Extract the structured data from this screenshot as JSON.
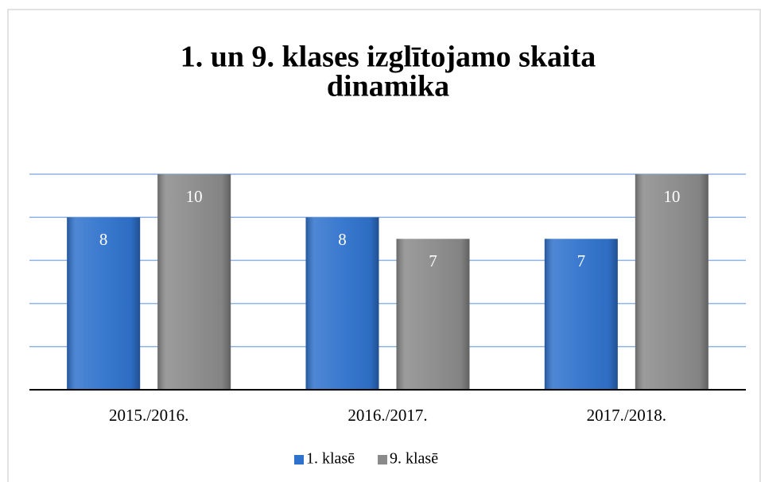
{
  "chart_data": {
    "type": "bar",
    "title": [
      "1. un 9. klases izglītojamo skaita",
      "dinamika"
    ],
    "categories": [
      "2015./2016.",
      "2016./2017.",
      "2017./2018."
    ],
    "series": [
      {
        "name": "1. klasē",
        "color": "#2f72cc",
        "values": [
          8,
          8,
          7
        ]
      },
      {
        "name": "9. klasē",
        "color": "#8a8a8a",
        "values": [
          10,
          7,
          10
        ]
      }
    ],
    "ylim": [
      0,
      10
    ],
    "yticks": [
      0,
      2,
      4,
      6,
      8,
      10
    ],
    "grid": true,
    "legend": "bottom"
  }
}
